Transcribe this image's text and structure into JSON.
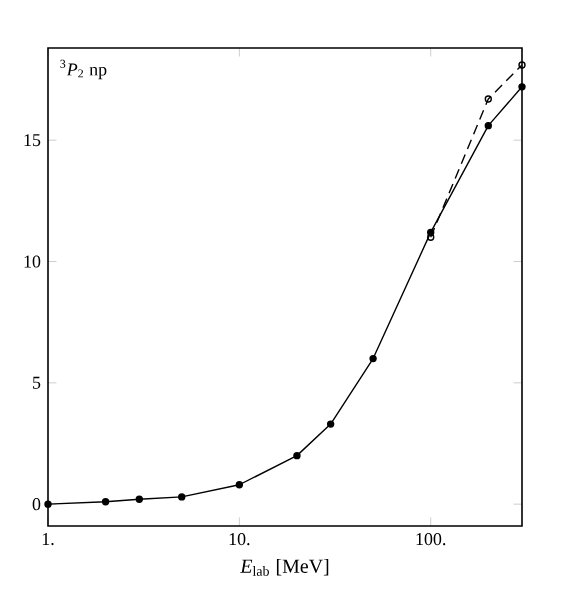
{
  "chart_data": {
    "type": "line",
    "title": "$^{3}$*P*$_{2}$ np",
    "xlabel": "*E*$_{lab}$ [MeV]",
    "log": "x",
    "xlim": [
      1,
      300
    ],
    "ylim": [
      -0.9,
      18.8
    ],
    "xticks": [
      {
        "value": 1,
        "label": "1."
      },
      {
        "value": 10,
        "label": "10."
      },
      {
        "value": 100,
        "label": "100."
      }
    ],
    "yticks": [
      0,
      5,
      10,
      15
    ],
    "grid": false,
    "marker": "circle",
    "series": [
      {
        "color": "#000000",
        "line_style": "solid",
        "x": [
          1,
          2,
          3,
          5,
          10,
          20,
          30,
          50,
          100,
          200,
          300
        ],
        "values": [
          0,
          0.1,
          0.2,
          0.3,
          0.8,
          2.0,
          3.3,
          6.0,
          11.2,
          15.6,
          17.2
        ]
      },
      {
        "color": "#000000",
        "line_style": "dashed",
        "x": [
          100,
          200,
          300
        ],
        "values": [
          11.0,
          16.7,
          18.1
        ]
      }
    ]
  }
}
